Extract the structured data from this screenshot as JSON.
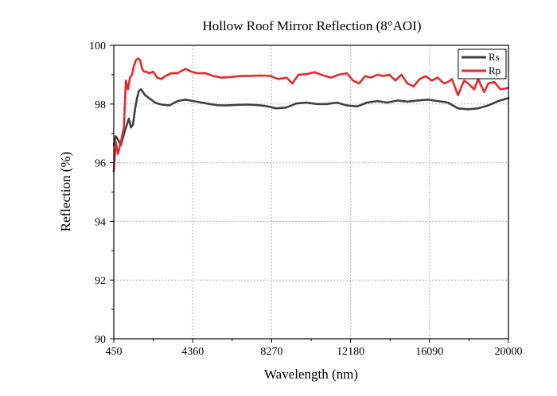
{
  "chart_data": {
    "type": "line",
    "title": "Hollow Roof Mirror Reflection (8°AOI)",
    "xlabel": "Wavelength (nm)",
    "ylabel": "Reflection (%)",
    "xlim": [
      450,
      20000
    ],
    "ylim": [
      90,
      100
    ],
    "xticks": [
      450,
      4360,
      8270,
      12180,
      16090,
      20000
    ],
    "yticks": [
      90,
      92,
      94,
      96,
      98,
      100
    ],
    "grid": "dotted",
    "legend_position": "top-right",
    "series": [
      {
        "name": "Rs",
        "color": "#404040",
        "x": [
          450,
          550,
          650,
          800,
          1000,
          1200,
          1300,
          1400,
          1500,
          1600,
          1700,
          1800,
          1900,
          2000,
          2100,
          2200,
          2500,
          2800,
          3200,
          3600,
          4000,
          4400,
          4800,
          5200,
          5600,
          6000,
          6500,
          7000,
          7500,
          8000,
          8500,
          9000,
          9500,
          10000,
          10500,
          11000,
          11500,
          12000,
          12500,
          13000,
          13500,
          14000,
          14500,
          15000,
          15500,
          16000,
          16500,
          17000,
          17500,
          18000,
          18500,
          19000,
          19500,
          20000
        ],
        "values": [
          96.6,
          96.9,
          96.8,
          96.6,
          97.1,
          97.5,
          97.2,
          97.3,
          97.8,
          98.2,
          98.45,
          98.5,
          98.4,
          98.3,
          98.25,
          98.2,
          98.05,
          97.98,
          97.95,
          98.1,
          98.15,
          98.1,
          98.05,
          98.0,
          97.96,
          97.95,
          97.97,
          97.98,
          97.97,
          97.93,
          97.85,
          97.88,
          98.02,
          98.05,
          98.0,
          98.0,
          98.05,
          97.95,
          97.92,
          98.05,
          98.1,
          98.05,
          98.12,
          98.08,
          98.12,
          98.15,
          98.1,
          98.05,
          97.85,
          97.82,
          97.85,
          97.95,
          98.1,
          98.2
        ]
      },
      {
        "name": "Rp",
        "color": "#e8292b",
        "x": [
          450,
          550,
          650,
          800,
          950,
          1050,
          1150,
          1250,
          1350,
          1450,
          1550,
          1650,
          1750,
          1850,
          1950,
          2050,
          2200,
          2400,
          2600,
          2800,
          3000,
          3300,
          3600,
          4000,
          4300,
          4600,
          5000,
          5400,
          5800,
          6200,
          6700,
          7200,
          7700,
          8200,
          8600,
          9000,
          9300,
          9600,
          10000,
          10400,
          10800,
          11200,
          11600,
          12000,
          12300,
          12600,
          12900,
          13200,
          13500,
          13800,
          14100,
          14400,
          14700,
          15000,
          15300,
          15600,
          15900,
          16200,
          16500,
          16800,
          17000,
          17200,
          17500,
          17800,
          18000,
          18300,
          18500,
          18800,
          19000,
          19300,
          19600,
          20000
        ],
        "values": [
          95.7,
          96.7,
          96.3,
          96.7,
          97.2,
          98.8,
          98.5,
          98.9,
          99.0,
          99.3,
          99.5,
          99.55,
          99.5,
          99.2,
          99.1,
          99.1,
          99.05,
          99.1,
          98.9,
          98.85,
          98.95,
          99.05,
          99.05,
          99.2,
          99.1,
          99.05,
          99.05,
          98.95,
          98.9,
          98.92,
          98.95,
          98.96,
          98.97,
          98.96,
          98.85,
          98.9,
          98.7,
          99.0,
          99.02,
          99.08,
          98.98,
          98.9,
          99.0,
          99.05,
          98.8,
          98.7,
          98.95,
          98.9,
          99.0,
          98.95,
          99.0,
          98.8,
          99.0,
          98.7,
          98.6,
          98.85,
          98.95,
          98.8,
          98.9,
          98.7,
          98.75,
          98.85,
          98.3,
          98.8,
          98.7,
          98.5,
          98.85,
          98.4,
          98.7,
          98.75,
          98.5,
          98.55
        ]
      }
    ]
  }
}
